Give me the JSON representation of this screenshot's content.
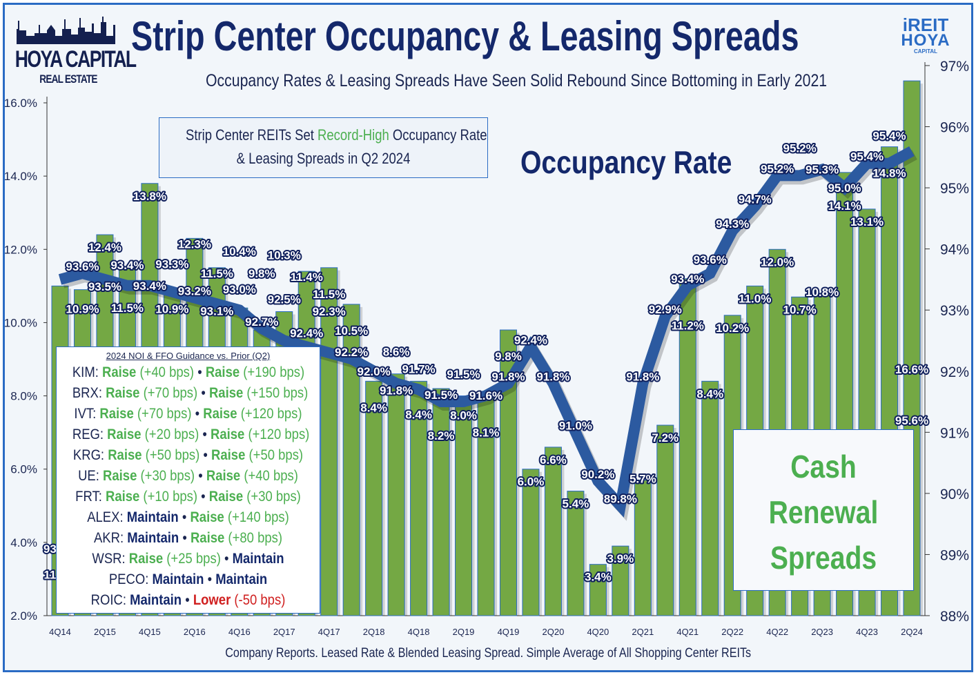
{
  "logo": {
    "line1": "HOYA CAPITAL",
    "line2": "REAL ESTATE"
  },
  "brand": {
    "line1": "iREIT",
    "line2": "HOYA",
    "line3": "CAPITAL"
  },
  "title": "Strip Center Occupancy & Leasing Spreads",
  "subtitle": "Occupancy Rates & Leasing Spreads Have Seen Solid Rebound Since Bottoming in Early 2021",
  "callout": {
    "pre": "Strip Center REITs Set ",
    "highlight": "Record-High",
    "post": " Occupancy Rate",
    "line2": "& Leasing Spreads in Q2 2024"
  },
  "occupancy_label": "Occupancy Rate",
  "cash_label": [
    "Cash",
    "Renewal",
    "Spreads"
  ],
  "guidance": {
    "header": "2024 NOI & FFO Guidance vs. Prior (Q2)",
    "rows": [
      {
        "ticker": "KIM:",
        "a_status": "Raise",
        "a_delta": "(+40 bps)",
        "b_status": "Raise",
        "b_delta": "(+190 bps)",
        "a_type": "raise",
        "b_type": "raise"
      },
      {
        "ticker": "BRX:",
        "a_status": "Raise",
        "a_delta": "(+70 bps)",
        "b_status": "Raise",
        "b_delta": "(+150 bps)",
        "a_type": "raise",
        "b_type": "raise"
      },
      {
        "ticker": "IVT:",
        "a_status": "Raise",
        "a_delta": "(+70 bps)",
        "b_status": "Raise",
        "b_delta": "(+120 bps)",
        "a_type": "raise",
        "b_type": "raise"
      },
      {
        "ticker": "REG:",
        "a_status": "Raise",
        "a_delta": "(+20 bps)",
        "b_status": "Raise",
        "b_delta": "(+120 bps)",
        "a_type": "raise",
        "b_type": "raise"
      },
      {
        "ticker": "KRG:",
        "a_status": "Raise",
        "a_delta": "(+50 bps)",
        "b_status": "Raise",
        "b_delta": "(+50 bps)",
        "a_type": "raise",
        "b_type": "raise"
      },
      {
        "ticker": "UE:",
        "a_status": "Raise",
        "a_delta": "(+30 bps)",
        "b_status": "Raise",
        "b_delta": "(+40 bps)",
        "a_type": "raise",
        "b_type": "raise"
      },
      {
        "ticker": "FRT:",
        "a_status": "Raise",
        "a_delta": "(+10 bps)",
        "b_status": "Raise",
        "b_delta": "(+30 bps)",
        "a_type": "raise",
        "b_type": "raise"
      },
      {
        "ticker": "ALEX:",
        "a_status": "Maintain",
        "a_delta": "",
        "b_status": "Raise",
        "b_delta": "(+140 bps)",
        "a_type": "maintain",
        "b_type": "raise"
      },
      {
        "ticker": "AKR:",
        "a_status": "Maintain",
        "a_delta": "",
        "b_status": "Raise",
        "b_delta": "(+80 bps)",
        "a_type": "maintain",
        "b_type": "raise"
      },
      {
        "ticker": "WSR:",
        "a_status": "Raise",
        "a_delta": "(+25 bps)",
        "b_status": "Maintain",
        "b_delta": "",
        "a_type": "raise",
        "b_type": "maintain"
      },
      {
        "ticker": "PECO:",
        "a_status": "Maintain",
        "a_delta": "",
        "b_status": "Maintain",
        "b_delta": "",
        "a_type": "maintain",
        "b_type": "maintain"
      },
      {
        "ticker": "ROIC:",
        "a_status": "Maintain",
        "a_delta": "",
        "b_status": "Lower",
        "b_delta": "(-50 bps)",
        "a_type": "maintain",
        "b_type": "lower"
      }
    ]
  },
  "source": "Company Reports. Leased Rate & Blended Leasing Spread. Simple Average of All Shopping Center REITs",
  "colors": {
    "bar": "#74a844",
    "bar_edge": "#2a6bc4",
    "line": "#2c5aa0",
    "label_outline": "#0f1f5c",
    "frame": "#2a6bc4",
    "raise": "#4caf50",
    "maintain": "#14286b",
    "lower": "#d02020"
  },
  "chart_data": {
    "type": "bar+line",
    "categories": [
      "4Q14",
      "1Q15",
      "2Q15",
      "3Q15",
      "4Q15",
      "1Q16",
      "2Q16",
      "3Q16",
      "4Q16",
      "1Q17",
      "2Q17",
      "3Q17",
      "4Q17",
      "1Q18",
      "2Q18",
      "3Q18",
      "4Q18",
      "1Q19",
      "2Q19",
      "3Q19",
      "4Q19",
      "1Q20",
      "2Q20",
      "3Q20",
      "4Q20",
      "1Q21",
      "2Q21",
      "3Q21",
      "4Q21",
      "1Q22",
      "2Q22",
      "3Q22",
      "4Q22",
      "1Q23",
      "2Q23",
      "3Q23",
      "4Q23",
      "1Q24",
      "2Q24"
    ],
    "tick_labels": [
      "4Q14",
      "2Q15",
      "4Q15",
      "2Q16",
      "4Q16",
      "2Q17",
      "4Q17",
      "2Q18",
      "4Q18",
      "2Q19",
      "4Q19",
      "2Q20",
      "4Q20",
      "2Q21",
      "4Q21",
      "2Q22",
      "4Q22",
      "2Q23",
      "4Q23",
      "2Q24"
    ],
    "series": [
      {
        "type": "bar",
        "axis": "left",
        "values": [
          11.0,
          10.9,
          12.4,
          11.5,
          13.8,
          10.9,
          12.3,
          11.5,
          10.4,
          9.8,
          10.3,
          11.4,
          11.5,
          10.5,
          8.4,
          8.6,
          8.4,
          8.2,
          8.0,
          8.1,
          9.8,
          6.0,
          6.6,
          5.4,
          3.4,
          3.9,
          5.7,
          7.2,
          11.2,
          8.4,
          10.2,
          11.0,
          12.0,
          10.7,
          10.8,
          14.1,
          13.1,
          14.8,
          16.6
        ]
      },
      {
        "type": "line",
        "axis": "right",
        "values": [
          93.5,
          93.6,
          93.5,
          93.4,
          93.4,
          93.3,
          93.2,
          93.1,
          93.0,
          92.7,
          92.5,
          92.4,
          92.3,
          92.2,
          92.0,
          91.8,
          91.7,
          91.5,
          91.5,
          91.6,
          91.8,
          92.4,
          91.8,
          91.0,
          90.2,
          89.8,
          91.8,
          92.9,
          93.4,
          93.6,
          94.3,
          94.7,
          95.2,
          95.2,
          95.3,
          95.0,
          95.4,
          95.4,
          95.6
        ]
      }
    ],
    "y_left": {
      "ylim": [
        2.0,
        16.0
      ],
      "ticks": [
        "2.0%",
        "4.0%",
        "6.0%",
        "8.0%",
        "10.0%",
        "12.0%",
        "14.0%",
        "16.0%"
      ]
    },
    "y_right": {
      "ylim": [
        88,
        97
      ],
      "ticks": [
        "88%",
        "89%",
        "90%",
        "91%",
        "92%",
        "93%",
        "94%",
        "95%",
        "96%",
        "97%"
      ]
    },
    "grid": false
  }
}
